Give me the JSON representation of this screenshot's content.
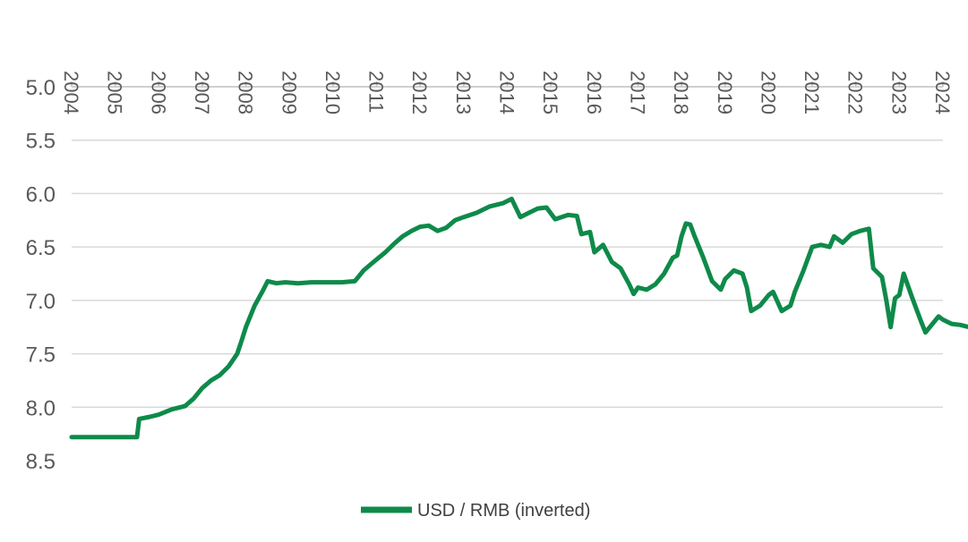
{
  "chart_data": {
    "type": "line",
    "title": "",
    "xlabel": "",
    "ylabel": "",
    "y_inverted": true,
    "xlim": [
      2004,
      2024
    ],
    "ylim": [
      5.0,
      8.5
    ],
    "x_ticks": [
      "2004",
      "2005",
      "2006",
      "2007",
      "2008",
      "2009",
      "2010",
      "2011",
      "2012",
      "2013",
      "2014",
      "2015",
      "2016",
      "2017",
      "2018",
      "2019",
      "2020",
      "2021",
      "2022",
      "2023",
      "2024"
    ],
    "y_ticks": [
      "5.0",
      "5.5",
      "6.0",
      "6.5",
      "7.0",
      "7.5",
      "8.0",
      "8.5"
    ],
    "grid": "horizontal",
    "legend_position": "bottom-center",
    "colors": {
      "series": "#0e8a4a",
      "grid": "#d9d9d9",
      "axis": "#bfbfbf",
      "text": "#595959"
    },
    "series": [
      {
        "name": "USD / RMB (inverted)",
        "points": [
          [
            2004.0,
            8.28
          ],
          [
            2005.0,
            8.28
          ],
          [
            2005.5,
            8.28
          ],
          [
            2005.55,
            8.11
          ],
          [
            2005.8,
            8.09
          ],
          [
            2006.0,
            8.07
          ],
          [
            2006.3,
            8.02
          ],
          [
            2006.6,
            7.99
          ],
          [
            2006.8,
            7.92
          ],
          [
            2007.0,
            7.82
          ],
          [
            2007.2,
            7.75
          ],
          [
            2007.4,
            7.7
          ],
          [
            2007.6,
            7.62
          ],
          [
            2007.8,
            7.5
          ],
          [
            2007.9,
            7.38
          ],
          [
            2008.0,
            7.25
          ],
          [
            2008.2,
            7.05
          ],
          [
            2008.4,
            6.9
          ],
          [
            2008.5,
            6.82
          ],
          [
            2008.7,
            6.84
          ],
          [
            2008.9,
            6.83
          ],
          [
            2009.2,
            6.84
          ],
          [
            2009.5,
            6.83
          ],
          [
            2009.8,
            6.83
          ],
          [
            2010.2,
            6.83
          ],
          [
            2010.5,
            6.82
          ],
          [
            2010.7,
            6.72
          ],
          [
            2010.9,
            6.65
          ],
          [
            2011.2,
            6.55
          ],
          [
            2011.4,
            6.47
          ],
          [
            2011.6,
            6.4
          ],
          [
            2011.8,
            6.35
          ],
          [
            2012.0,
            6.31
          ],
          [
            2012.2,
            6.3
          ],
          [
            2012.4,
            6.35
          ],
          [
            2012.6,
            6.32
          ],
          [
            2012.8,
            6.25
          ],
          [
            2013.0,
            6.22
          ],
          [
            2013.3,
            6.18
          ],
          [
            2013.6,
            6.12
          ],
          [
            2013.9,
            6.09
          ],
          [
            2014.1,
            6.05
          ],
          [
            2014.3,
            6.22
          ],
          [
            2014.5,
            6.18
          ],
          [
            2014.7,
            6.14
          ],
          [
            2014.9,
            6.13
          ],
          [
            2015.1,
            6.24
          ],
          [
            2015.4,
            6.2
          ],
          [
            2015.6,
            6.21
          ],
          [
            2015.7,
            6.38
          ],
          [
            2015.9,
            6.36
          ],
          [
            2016.0,
            6.55
          ],
          [
            2016.2,
            6.48
          ],
          [
            2016.4,
            6.64
          ],
          [
            2016.6,
            6.7
          ],
          [
            2016.8,
            6.85
          ],
          [
            2016.9,
            6.94
          ],
          [
            2017.0,
            6.88
          ],
          [
            2017.2,
            6.9
          ],
          [
            2017.4,
            6.85
          ],
          [
            2017.6,
            6.75
          ],
          [
            2017.8,
            6.6
          ],
          [
            2017.9,
            6.58
          ],
          [
            2018.0,
            6.4
          ],
          [
            2018.1,
            6.28
          ],
          [
            2018.2,
            6.29
          ],
          [
            2018.3,
            6.4
          ],
          [
            2018.5,
            6.6
          ],
          [
            2018.7,
            6.82
          ],
          [
            2018.9,
            6.9
          ],
          [
            2019.0,
            6.8
          ],
          [
            2019.2,
            6.72
          ],
          [
            2019.4,
            6.75
          ],
          [
            2019.5,
            6.88
          ],
          [
            2019.6,
            7.1
          ],
          [
            2019.8,
            7.05
          ],
          [
            2020.0,
            6.95
          ],
          [
            2020.1,
            6.92
          ],
          [
            2020.3,
            7.1
          ],
          [
            2020.5,
            7.05
          ],
          [
            2020.6,
            6.92
          ],
          [
            2020.8,
            6.72
          ],
          [
            2021.0,
            6.5
          ],
          [
            2021.2,
            6.48
          ],
          [
            2021.4,
            6.5
          ],
          [
            2021.5,
            6.4
          ],
          [
            2021.7,
            6.46
          ],
          [
            2021.9,
            6.38
          ],
          [
            2022.1,
            6.35
          ],
          [
            2022.3,
            6.33
          ],
          [
            2022.4,
            6.7
          ],
          [
            2022.6,
            6.78
          ],
          [
            2022.7,
            7.0
          ],
          [
            2022.8,
            7.25
          ],
          [
            2022.9,
            6.98
          ],
          [
            2023.0,
            6.95
          ],
          [
            2023.1,
            6.75
          ],
          [
            2023.3,
            6.98
          ],
          [
            2023.5,
            7.2
          ],
          [
            2023.6,
            7.3
          ],
          [
            2023.7,
            7.25
          ],
          [
            2023.9,
            7.15
          ],
          [
            2024.0,
            7.18
          ],
          [
            2024.2,
            7.22
          ],
          [
            2024.4,
            7.23
          ],
          [
            2024.6,
            7.25
          ]
        ]
      }
    ]
  }
}
